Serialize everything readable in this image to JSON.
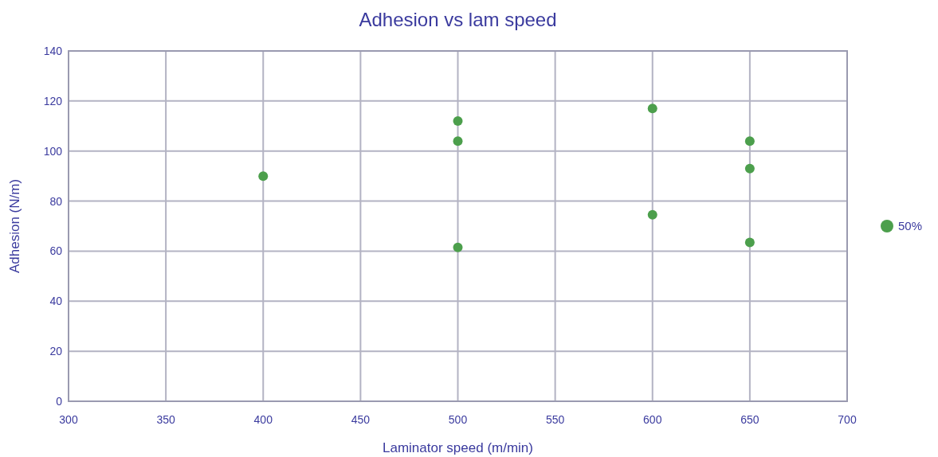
{
  "chart_data": {
    "type": "scatter",
    "title": "Adhesion vs lam speed",
    "xlabel": "Laminator speed (m/min)",
    "ylabel": "Adhesion (N/m)",
    "series": [
      {
        "name": "50%",
        "color": "#4c9f4c",
        "x": [
          400,
          500,
          500,
          500,
          600,
          600,
          650,
          650,
          650
        ],
        "values": [
          90,
          112,
          104,
          61.5,
          117,
          74.5,
          104,
          93,
          63.5
        ]
      }
    ],
    "xlim": [
      300,
      700
    ],
    "xticks": [
      300,
      350,
      400,
      450,
      500,
      550,
      600,
      650,
      700
    ],
    "ylim": [
      0,
      140
    ],
    "yticks": [
      0,
      20,
      40,
      60,
      80,
      100,
      120,
      140
    ],
    "grid": true,
    "legend": "right",
    "marker": "circle"
  }
}
